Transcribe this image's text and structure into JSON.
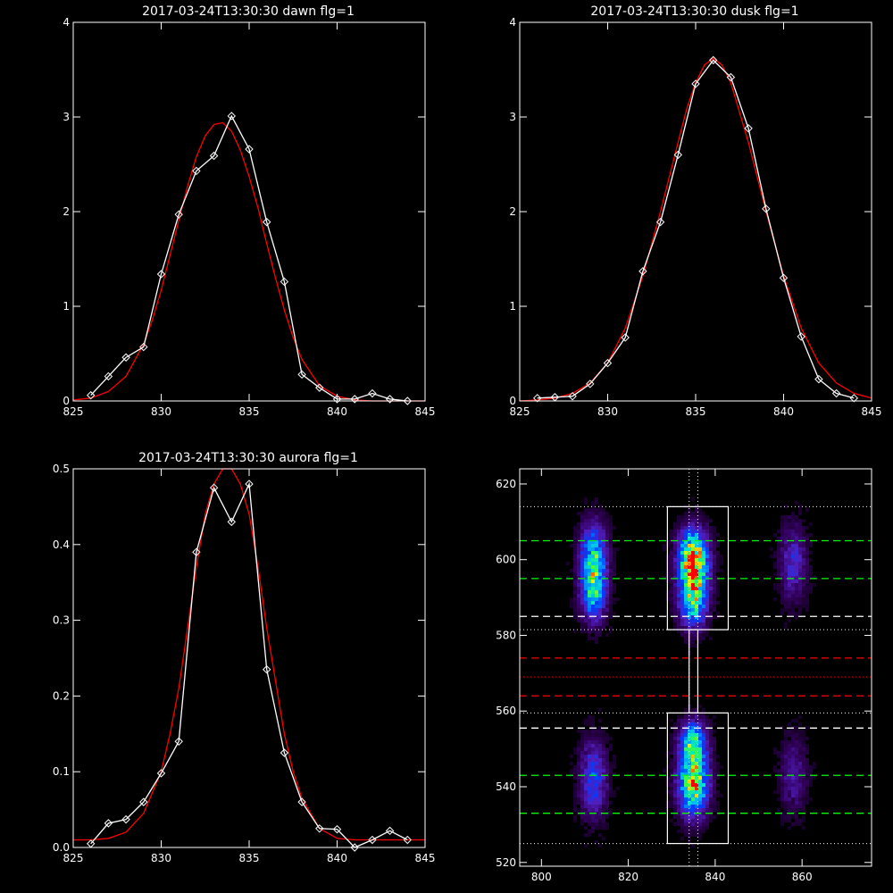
{
  "colors": {
    "background": "#000000",
    "axes": "#ffffff",
    "observed": "#ffffff",
    "fit": "#ff0000",
    "window_box": "#ffffff",
    "green_lines": "#00ff00",
    "red_lines": "#ff0000",
    "white_dashed": "#ffffff"
  },
  "chart_data": [
    {
      "type": "line",
      "title": "2017-03-24T13:30:30 dawn flg=1",
      "xlim": [
        825,
        845
      ],
      "ylim": [
        0,
        4
      ],
      "xticks": [
        "825",
        "830",
        "835",
        "840",
        "845"
      ],
      "yticks": [
        "0",
        "1",
        "2",
        "3",
        "4"
      ],
      "grid": false,
      "series": [
        {
          "marker": "diamond",
          "x": [
            826,
            827,
            828,
            829,
            830,
            831,
            832,
            833,
            834,
            835,
            836,
            837,
            838,
            839,
            840,
            841,
            842,
            843,
            844
          ],
          "values": [
            0.06,
            0.26,
            0.46,
            0.57,
            1.34,
            1.97,
            2.43,
            2.59,
            3.01,
            2.66,
            1.89,
            1.26,
            0.28,
            0.14,
            0.02,
            0.02,
            0.08,
            0.02,
            0.0
          ]
        },
        {
          "marker": "none",
          "x": [
            825,
            826,
            827,
            828,
            829,
            829.5,
            830,
            830.5,
            831,
            831.5,
            832,
            832.5,
            833,
            833.5,
            834,
            834.5,
            835,
            835.5,
            836,
            836.5,
            837,
            837.5,
            838,
            839,
            840,
            841,
            842,
            843,
            844,
            845
          ],
          "values": [
            0.01,
            0.03,
            0.1,
            0.26,
            0.6,
            0.86,
            1.17,
            1.54,
            1.91,
            2.27,
            2.58,
            2.8,
            2.92,
            2.94,
            2.85,
            2.65,
            2.37,
            2.04,
            1.66,
            1.3,
            0.96,
            0.67,
            0.44,
            0.16,
            0.05,
            0.01,
            0.0,
            0.0,
            0.0,
            0.0
          ]
        }
      ]
    },
    {
      "type": "line",
      "title": "2017-03-24T13:30:30 dusk flg=1",
      "xlim": [
        825,
        845
      ],
      "ylim": [
        0,
        4
      ],
      "xticks": [
        "825",
        "830",
        "835",
        "840",
        "845"
      ],
      "yticks": [
        "0",
        "1",
        "2",
        "3",
        "4"
      ],
      "grid": false,
      "series": [
        {
          "marker": "diamond",
          "x": [
            826,
            827,
            828,
            829,
            830,
            831,
            832,
            833,
            834,
            835,
            836,
            837,
            838,
            839,
            840,
            841,
            842,
            843,
            844
          ],
          "values": [
            0.03,
            0.04,
            0.05,
            0.18,
            0.4,
            0.67,
            1.37,
            1.89,
            2.6,
            3.35,
            3.6,
            3.42,
            2.88,
            2.03,
            1.3,
            0.68,
            0.23,
            0.08,
            0.03
          ]
        },
        {
          "marker": "none",
          "x": [
            825,
            826,
            827,
            828,
            829,
            830,
            831,
            832,
            833,
            834,
            834.5,
            835,
            835.5,
            836,
            836.5,
            837,
            838,
            839,
            840,
            841,
            842,
            843,
            844,
            845
          ],
          "values": [
            0.0,
            0.01,
            0.03,
            0.08,
            0.19,
            0.4,
            0.77,
            1.32,
            2.0,
            2.73,
            3.09,
            3.36,
            3.55,
            3.62,
            3.55,
            3.36,
            2.73,
            2.0,
            1.32,
            0.77,
            0.4,
            0.19,
            0.08,
            0.03
          ]
        }
      ]
    },
    {
      "type": "line",
      "title": "2017-03-24T13:30:30 aurora flg=1",
      "xlim": [
        825,
        845
      ],
      "ylim": [
        0,
        0.5
      ],
      "xticks": [
        "825",
        "830",
        "835",
        "840",
        "845"
      ],
      "yticks": [
        "0.0",
        "0.1",
        "0.2",
        "0.3",
        "0.4",
        "0.5"
      ],
      "grid": false,
      "series": [
        {
          "marker": "diamond",
          "x": [
            826,
            827,
            828,
            829,
            830,
            831,
            832,
            833,
            834,
            835,
            836,
            837,
            838,
            839,
            840,
            841,
            842,
            843,
            844
          ],
          "values": [
            0.005,
            0.032,
            0.037,
            0.06,
            0.098,
            0.14,
            0.39,
            0.475,
            0.43,
            0.48,
            0.235,
            0.125,
            0.06,
            0.025,
            0.024,
            0.0,
            0.01,
            0.022,
            0.01
          ]
        },
        {
          "marker": "none",
          "x": [
            825,
            826,
            827,
            828,
            829,
            830,
            830.5,
            831,
            831.5,
            832,
            832.5,
            833,
            833.5,
            834,
            834.5,
            835,
            835.5,
            836,
            836.5,
            837,
            837.5,
            838,
            839,
            840,
            841,
            842,
            843,
            844,
            845
          ],
          "values": [
            0.01,
            0.01,
            0.012,
            0.02,
            0.045,
            0.1,
            0.15,
            0.21,
            0.29,
            0.37,
            0.44,
            0.48,
            0.5,
            0.5,
            0.48,
            0.44,
            0.37,
            0.29,
            0.22,
            0.15,
            0.1,
            0.065,
            0.025,
            0.012,
            0.01,
            0.01,
            0.01,
            0.01,
            0.01
          ]
        }
      ]
    },
    {
      "type": "heatmap",
      "xlim": [
        795,
        876
      ],
      "ylim": [
        519,
        624
      ],
      "xticks": [
        "800",
        "820",
        "840",
        "860"
      ],
      "yticks": [
        "520",
        "540",
        "560",
        "580",
        "600",
        "620"
      ],
      "grid": false,
      "blobs": [
        {
          "x": 812,
          "y": 600,
          "sx": 2.2,
          "sy": 6.5,
          "amp": 0.62
        },
        {
          "x": 812,
          "y": 590,
          "sx": 2.0,
          "sy": 5.0,
          "amp": 0.45
        },
        {
          "x": 835,
          "y": 600,
          "sx": 2.4,
          "sy": 5.5,
          "amp": 0.95
        },
        {
          "x": 835,
          "y": 589,
          "sx": 2.3,
          "sy": 5.0,
          "amp": 0.62
        },
        {
          "x": 835,
          "y": 541,
          "sx": 2.4,
          "sy": 6.0,
          "amp": 0.85
        },
        {
          "x": 835,
          "y": 552,
          "sx": 2.2,
          "sy": 4.0,
          "amp": 0.55
        },
        {
          "x": 812,
          "y": 542,
          "sx": 2.2,
          "sy": 7.0,
          "amp": 0.4
        },
        {
          "x": 858,
          "y": 599,
          "sx": 2.2,
          "sy": 7.0,
          "amp": 0.3
        },
        {
          "x": 858,
          "y": 543,
          "sx": 2.2,
          "sy": 7.0,
          "amp": 0.22
        }
      ],
      "boxes": [
        {
          "x": [
            829,
            843
          ],
          "y": [
            581.5,
            614
          ]
        },
        {
          "x": [
            829,
            843
          ],
          "y": [
            525,
            559.5
          ]
        },
        {
          "x": [
            834,
            836
          ],
          "y": [
            559.5,
            581.5
          ]
        }
      ],
      "dotted_hlines_white": [
        614,
        581.5,
        559.5,
        525
      ],
      "dotted_vlines_white": [
        834,
        836
      ],
      "dashed_hlines_green": [
        605,
        595,
        543,
        533
      ],
      "dashed_hlines_white": [
        585,
        555.5
      ],
      "dashed_hlines_red": [
        574,
        564
      ],
      "dotted_hlines_red": [
        569
      ]
    }
  ]
}
